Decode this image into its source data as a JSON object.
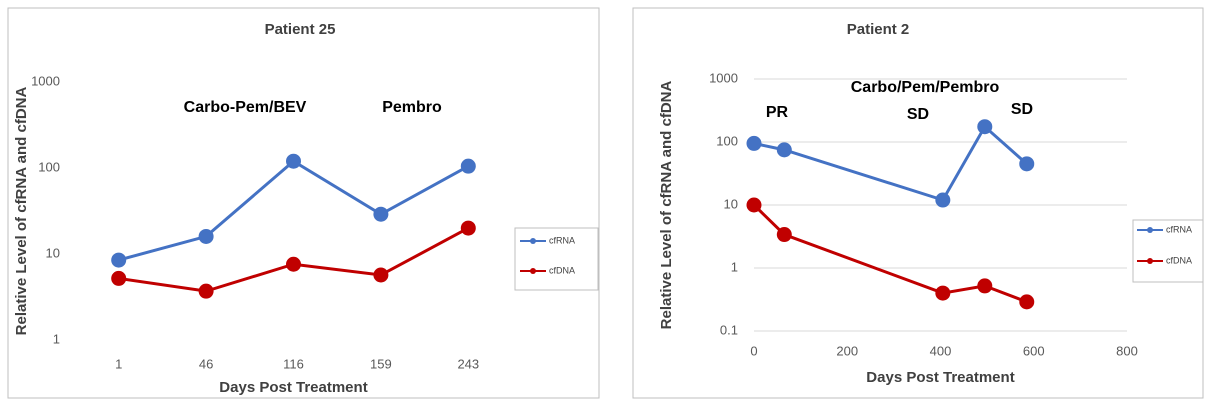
{
  "chart_data": [
    {
      "type": "line",
      "title": "Patient 25",
      "x_label": "Days Post Treatment",
      "y_label": "Relative Level of cfRNA and cfDNA",
      "categories": [
        "1",
        "46",
        "116",
        "159",
        "243"
      ],
      "series": [
        {
          "name": "cfRNA",
          "color": "#4472c4",
          "values": [
            8.5,
            16,
            120,
            29,
            105
          ]
        },
        {
          "name": "cfDNA",
          "color": "#c00000",
          "values": [
            5.2,
            3.7,
            7.6,
            5.7,
            20
          ]
        }
      ],
      "log_y": true,
      "ylim": [
        1,
        1000
      ],
      "yticks": [
        1,
        10,
        100,
        1000
      ],
      "grid": false,
      "legend": "right",
      "annotations": [
        "Carbo-Pem/BEV",
        "Pembro"
      ]
    },
    {
      "type": "line",
      "title": "Patient 2",
      "x_label": "Days Post Treatment",
      "y_label": "Relative Level of cfRNA and cfDNA",
      "x": [
        0,
        65,
        405,
        495,
        585
      ],
      "series": [
        {
          "name": "cfRNA",
          "color": "#4472c4",
          "values": [
            95,
            75,
            12,
            175,
            45
          ]
        },
        {
          "name": "cfDNA",
          "color": "#c00000",
          "values": [
            10,
            3.4,
            0.4,
            0.52,
            0.29
          ]
        }
      ],
      "log_y": true,
      "ylim": [
        0.1,
        1000
      ],
      "yticks": [
        0.1,
        1,
        10,
        100,
        1000
      ],
      "xlim": [
        0,
        800
      ],
      "xticks": [
        0,
        200,
        400,
        600,
        800
      ],
      "grid": true,
      "legend": "right",
      "annotations": [
        "Carbo/Pem/Pembro",
        "PR",
        "SD",
        "SD"
      ]
    }
  ]
}
